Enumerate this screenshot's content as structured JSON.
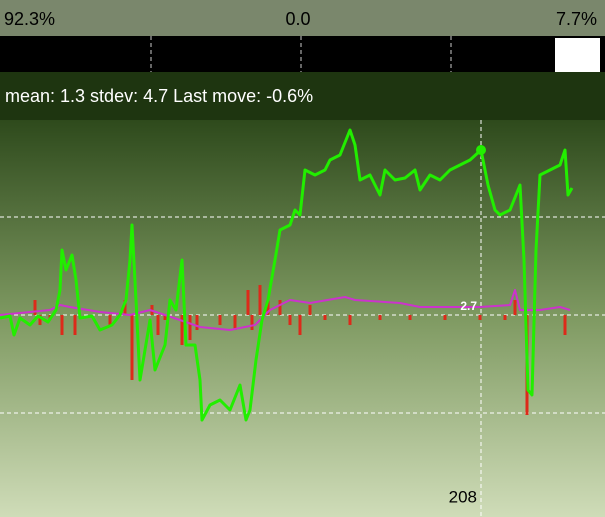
{
  "header": {
    "left": "92.3%",
    "center": "0.0",
    "right": "7.7%"
  },
  "stats": "mean: 1.3 stdev: 4.7 Last move: -0.6%",
  "chart_data": {
    "type": "line",
    "xlim": [
      0,
      605
    ],
    "ylim": [
      -195,
      195
    ],
    "yticks": [
      -98,
      0,
      98
    ],
    "grid": true,
    "series": [
      {
        "color": "#22ee00",
        "x": [
          0,
          10,
          14,
          20,
          30,
          38,
          48,
          56,
          60,
          62,
          66,
          72,
          76,
          80,
          92,
          100,
          112,
          120,
          126,
          130,
          132,
          136,
          140,
          150,
          155,
          165,
          170,
          176,
          182,
          186,
          195,
          200,
          202,
          210,
          220,
          230,
          240,
          246,
          250,
          256,
          262,
          268,
          275,
          280,
          290,
          295,
          300,
          305,
          315,
          325,
          330,
          340,
          350,
          355,
          360,
          370,
          380,
          385,
          395,
          405,
          415,
          420,
          430,
          440,
          450,
          460,
          470,
          481,
          488,
          495,
          500,
          510,
          520,
          524,
          528,
          532,
          536,
          540,
          550,
          560,
          565,
          568,
          572
        ],
        "values": [
          -3,
          -1,
          -20,
          -3,
          -10,
          -1,
          -7,
          5,
          25,
          65,
          45,
          60,
          35,
          -3,
          -1,
          -15,
          -10,
          0,
          15,
          55,
          90,
          15,
          -65,
          -5,
          -55,
          -30,
          15,
          5,
          55,
          -30,
          -30,
          -65,
          -105,
          -90,
          -85,
          -95,
          -70,
          -105,
          -95,
          -45,
          -5,
          15,
          55,
          85,
          90,
          105,
          100,
          145,
          140,
          145,
          155,
          160,
          185,
          170,
          135,
          140,
          120,
          145,
          135,
          137,
          145,
          125,
          140,
          135,
          145,
          150,
          155,
          165,
          130,
          105,
          100,
          105,
          130,
          55,
          -75,
          -80,
          65,
          140,
          145,
          150,
          165,
          120,
          127
        ]
      },
      {
        "color": "#cc33cc",
        "x": [
          0,
          50,
          60,
          70,
          100,
          130,
          150,
          180,
          200,
          230,
          255,
          270,
          290,
          310,
          345,
          355,
          400,
          420,
          440,
          480,
          510,
          515,
          520,
          540,
          560,
          570
        ],
        "values": [
          0,
          5,
          10,
          8,
          3,
          0,
          5,
          -5,
          -12,
          -15,
          -10,
          5,
          15,
          12,
          18,
          15,
          12,
          8,
          8,
          8,
          10,
          25,
          5,
          5,
          8,
          5
        ]
      },
      {
        "color": "#dd2a1a",
        "style": "bar",
        "x": [
          35,
          40,
          50,
          62,
          75,
          110,
          125,
          132,
          152,
          158,
          165,
          182,
          190,
          197,
          220,
          235,
          248,
          252,
          260,
          268,
          280,
          290,
          300,
          310,
          325,
          350,
          380,
          410,
          445,
          480,
          505,
          515,
          527,
          565
        ],
        "values": [
          15,
          -10,
          -5,
          -20,
          -20,
          -10,
          15,
          -65,
          10,
          -20,
          -5,
          -30,
          -25,
          -15,
          -10,
          -15,
          25,
          -15,
          30,
          15,
          15,
          -10,
          -20,
          10,
          -5,
          -10,
          -5,
          -5,
          -5,
          -5,
          -5,
          15,
          -100,
          -20
        ]
      }
    ],
    "crosshair": {
      "x": 481,
      "value": 165
    },
    "annotations": [
      "2.7",
      "208"
    ]
  }
}
